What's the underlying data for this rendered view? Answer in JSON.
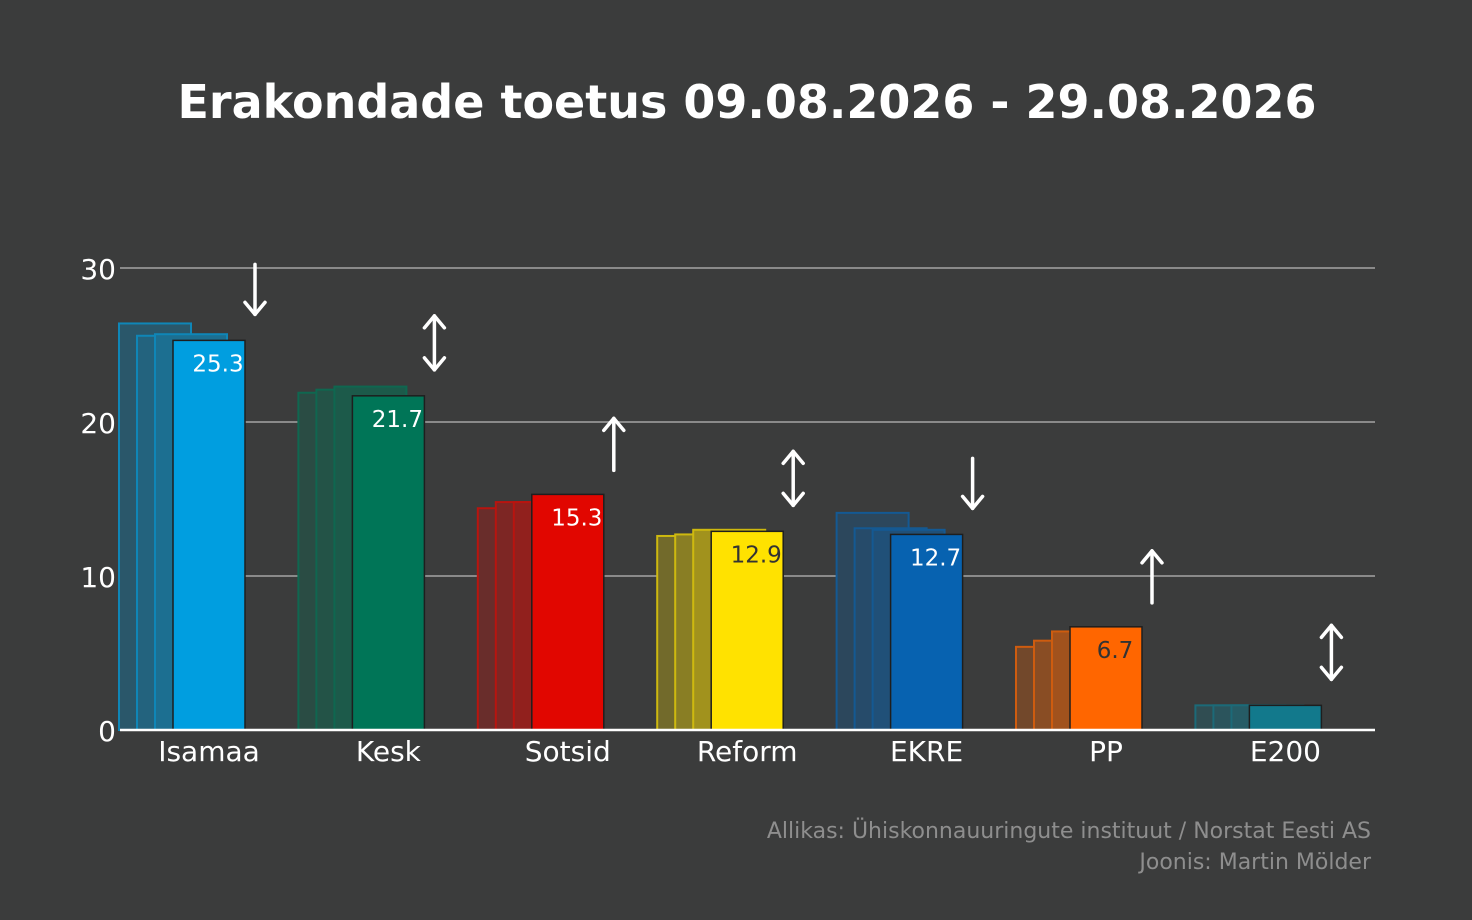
{
  "chart_data": {
    "type": "bar",
    "title": "Erakondade toetus 09.08.2026 - 29.08.2026",
    "xlabel": "",
    "ylabel": "",
    "ylim": [
      0,
      30
    ],
    "yticks": [
      0,
      10,
      20,
      30
    ],
    "grid": true,
    "categories": [
      "Isamaa",
      "Kesk",
      "Sotsid",
      "Reform",
      "EKRE",
      "PP",
      "E200"
    ],
    "values": [
      25.3,
      21.7,
      15.3,
      12.9,
      12.7,
      6.7,
      1.6
    ],
    "data_labels": [
      "25.3",
      "21.7",
      "15.3",
      "12.9",
      "12.7",
      "6.7",
      ""
    ],
    "previous_values": [
      [
        26.4,
        25.6,
        25.7
      ],
      [
        21.9,
        22.1,
        22.3
      ],
      [
        14.4,
        14.8,
        14.8
      ],
      [
        12.6,
        12.7,
        13.0
      ],
      [
        14.1,
        13.1,
        13.0
      ],
      [
        5.4,
        5.8,
        6.4
      ],
      [
        1.6,
        1.6,
        1.6
      ]
    ],
    "trends": [
      "down",
      "both",
      "up",
      "both",
      "down",
      "up",
      "both"
    ],
    "colors": [
      "#009ee0",
      "#007557",
      "#e10600",
      "#ffe200",
      "#0762b0",
      "#ff6600",
      "#12798c"
    ],
    "label_colors": [
      "#ffffff",
      "#ffffff",
      "#ffffff",
      "#333333",
      "#ffffff",
      "#333333",
      "#ffffff"
    ]
  },
  "footer": {
    "source": "Allikas: Ühiskonnauuringute instituut / Norstat Eesti AS",
    "author": "Joonis: Martin Mölder"
  },
  "colors": {
    "background": "#3b3c3c",
    "grid": "#8a8a8a",
    "text": "#ffffff",
    "footer_text": "#8e8e8e"
  }
}
